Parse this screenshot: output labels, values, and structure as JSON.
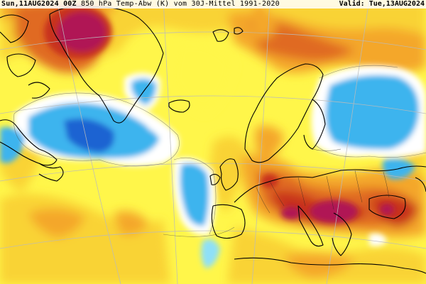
{
  "header": {
    "run_label": "Sun,11AUG2024 00Z",
    "title": "850 hPa Temp-Abw (K) vom 30J-Mittel 1991-2020",
    "valid_label": "Valid: Tue,13AUG2024"
  },
  "map": {
    "region": "North Atlantic / Europe",
    "variable": "850 hPa temperature anomaly",
    "units": "K",
    "colors": {
      "strong_cold": "#1e64d2",
      "cold": "#3cb4ee",
      "cool": "#8ee0f8",
      "neutral": "#ffffff",
      "warm_light": "#fff64a",
      "warm": "#f9d334",
      "warmer": "#f4a72c",
      "hot": "#e06a22",
      "very_hot": "#c8321e",
      "extreme": "#b01454",
      "coast": "#000000",
      "grid": "#bbbbbb"
    }
  }
}
